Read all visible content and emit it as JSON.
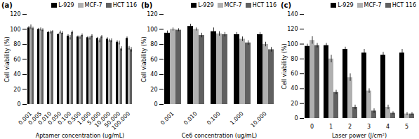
{
  "chart_data": [
    {
      "type": "bar",
      "title": "(a)",
      "x_label": "Aptamer concentration (ug/mL)",
      "y_label": "Cell viability (%)",
      "categories": [
        "0.001",
        "0.005",
        "0.010",
        "0.050",
        "0.100",
        "0.500",
        "1.000",
        "5.000",
        "10.000",
        "50.000",
        "100.000"
      ],
      "series": [
        {
          "name": "L-929",
          "color": "#000000",
          "values": [
            102,
            100,
            96,
            93,
            91,
            90,
            89,
            88,
            87,
            83,
            88
          ],
          "errors": [
            2,
            1.5,
            1.5,
            1.5,
            2,
            1.5,
            1.5,
            1.5,
            2,
            2,
            2
          ]
        },
        {
          "name": "MCF-7",
          "color": "#b0b0b0",
          "values": [
            103,
            100,
            96,
            96,
            89,
            89,
            88,
            85,
            85,
            82,
            75
          ],
          "errors": [
            3,
            2,
            2,
            2,
            3,
            2,
            2,
            2.5,
            2,
            2.5,
            2.5
          ]
        },
        {
          "name": "HCT 116",
          "color": "#606060",
          "values": [
            101,
            99,
            97,
            95,
            96,
            92,
            91,
            90,
            85,
            74,
            73
          ],
          "errors": [
            2,
            2,
            1.5,
            2,
            2,
            2,
            2,
            2,
            2.5,
            3,
            3
          ]
        }
      ],
      "ylim": [
        0,
        120
      ],
      "yticks": [
        0,
        20,
        40,
        60,
        80,
        100,
        120
      ],
      "grid": false,
      "legend": "top"
    },
    {
      "type": "bar",
      "title": "(b)",
      "x_label": "Ce6 concentration (ug/mL)",
      "y_label": "Cell viability (%)",
      "categories": [
        "0.001",
        "0.010",
        "0.100",
        "1.000",
        "10.000"
      ],
      "series": [
        {
          "name": "L-929",
          "color": "#000000",
          "values": [
            95,
            104,
            97,
            93,
            93
          ],
          "errors": [
            3,
            3,
            5,
            3,
            3
          ]
        },
        {
          "name": "MCF-7",
          "color": "#b0b0b0",
          "values": [
            100,
            100,
            94,
            87,
            80
          ],
          "errors": [
            2,
            2,
            3,
            3,
            3
          ]
        },
        {
          "name": "HCT 116",
          "color": "#606060",
          "values": [
            99,
            92,
            93,
            82,
            73
          ],
          "errors": [
            2,
            3,
            3,
            3,
            3
          ]
        }
      ],
      "ylim": [
        0,
        120
      ],
      "yticks": [
        0,
        20,
        40,
        60,
        80,
        100,
        120
      ],
      "grid": false,
      "legend": "top"
    },
    {
      "type": "bar",
      "title": "(c)",
      "x_label": "Laser power (J/cm²)",
      "y_label": "Cell viability (%)",
      "categories": [
        "0",
        "1",
        "2",
        "3",
        "4",
        "5"
      ],
      "series": [
        {
          "name": "L-929",
          "color": "#000000",
          "values": [
            97,
            98,
            93,
            88,
            85,
            88
          ],
          "errors": [
            3,
            3,
            3,
            5,
            4,
            5
          ]
        },
        {
          "name": "MCF-7",
          "color": "#b0b0b0",
          "values": [
            105,
            80,
            55,
            37,
            15,
            6
          ],
          "errors": [
            5,
            5,
            5,
            3,
            3,
            2
          ]
        },
        {
          "name": "HCT 116",
          "color": "#606060",
          "values": [
            98,
            35,
            15,
            10,
            7,
            6
          ],
          "errors": [
            3,
            3,
            3,
            3,
            2,
            2
          ]
        }
      ],
      "ylim": [
        0,
        140
      ],
      "yticks": [
        0,
        20,
        40,
        60,
        80,
        100,
        120,
        140
      ],
      "grid": false,
      "legend": "top"
    }
  ]
}
